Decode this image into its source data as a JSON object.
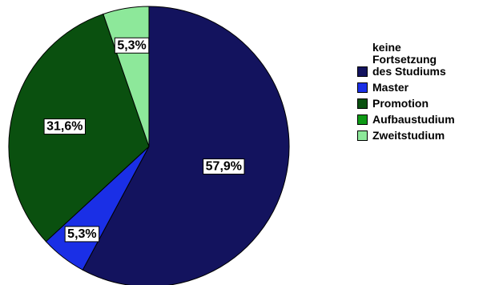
{
  "chart_data": {
    "type": "pie",
    "slices": [
      {
        "label": "keine\nFortsetzung\ndes Studiums",
        "value": 57.9,
        "display": "57,9%",
        "color": "#13135e"
      },
      {
        "label": "Master",
        "value": 5.3,
        "display": "5,3%",
        "color": "#1a2fe6"
      },
      {
        "label": "Promotion",
        "value": 31.6,
        "display": "31,6%",
        "color": "#0a500f"
      },
      {
        "label": "Aufbaustudium",
        "value": 0,
        "display": "",
        "color": "#0e9a16"
      },
      {
        "label": "Zweitstudium",
        "value": 5.3,
        "display": "5,3%",
        "color": "#8de89a"
      }
    ],
    "start": "12 o'clock",
    "direction": "clockwise",
    "legend_position": "right"
  }
}
